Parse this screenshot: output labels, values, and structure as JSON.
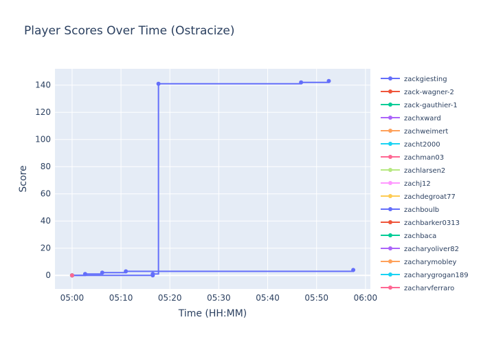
{
  "chart_data": {
    "type": "line",
    "title": "Player Scores Over Time (Ostracize)",
    "xlabel": "Time (HH:MM)",
    "ylabel": "Score",
    "x_tick_labels": [
      "05:00",
      "05:10",
      "05:20",
      "05:30",
      "05:40",
      "05:50",
      "06:00"
    ],
    "y_ticks": [
      0,
      20,
      40,
      60,
      80,
      100,
      120,
      140
    ],
    "xlim": [
      "04:56:30",
      "06:01:00"
    ],
    "ylim": [
      -10,
      152
    ],
    "grid": true,
    "legend_position": "right",
    "series": [
      {
        "name": "zackgiesting",
        "color": "#636efa",
        "points": [
          [
            "05:00:00",
            0
          ],
          [
            "05:16:30",
            0
          ],
          [
            "05:16:30",
            1
          ],
          [
            "05:17:40",
            141
          ],
          [
            "05:46:50",
            142
          ],
          [
            "05:52:30",
            143
          ]
        ]
      },
      {
        "name": "zack-wagner-2",
        "color": "#EF553B",
        "points": [
          [
            "05:00:00",
            0
          ]
        ]
      },
      {
        "name": "zack-gauthier-1",
        "color": "#00cc96",
        "points": [
          [
            "05:00:00",
            0
          ]
        ]
      },
      {
        "name": "zachxward",
        "color": "#ab63fa",
        "points": [
          [
            "05:00:00",
            0
          ]
        ]
      },
      {
        "name": "zachweimert",
        "color": "#FFA15A",
        "points": [
          [
            "05:00:00",
            0
          ]
        ]
      },
      {
        "name": "zacht2000",
        "color": "#19d3f3",
        "points": [
          [
            "05:00:00",
            0
          ]
        ]
      },
      {
        "name": "zachman03",
        "color": "#FF6692",
        "points": [
          [
            "05:00:00",
            0
          ]
        ]
      },
      {
        "name": "zachlarsen2",
        "color": "#B6E880",
        "points": [
          [
            "05:00:00",
            0
          ]
        ]
      },
      {
        "name": "zachj12",
        "color": "#FF97FF",
        "points": [
          [
            "05:00:00",
            0
          ]
        ]
      },
      {
        "name": "zachdegroat77",
        "color": "#FECB52",
        "points": [
          [
            "05:00:00",
            0
          ]
        ]
      },
      {
        "name": "zachboulb",
        "color": "#636efa",
        "points": [
          [
            "05:00:00",
            0
          ],
          [
            "05:02:40",
            1
          ],
          [
            "05:06:10",
            2
          ],
          [
            "05:11:00",
            3
          ],
          [
            "05:57:30",
            4
          ]
        ]
      },
      {
        "name": "zachbarker0313",
        "color": "#EF553B",
        "points": [
          [
            "05:00:00",
            0
          ]
        ]
      },
      {
        "name": "zachbaca",
        "color": "#00cc96",
        "points": [
          [
            "05:00:00",
            0
          ]
        ]
      },
      {
        "name": "zacharyoliver82",
        "color": "#ab63fa",
        "points": [
          [
            "05:00:00",
            0
          ]
        ]
      },
      {
        "name": "zacharymobley",
        "color": "#FFA15A",
        "points": [
          [
            "05:00:00",
            0
          ]
        ]
      },
      {
        "name": "zacharygrogan189",
        "color": "#19d3f3",
        "points": [
          [
            "05:00:00",
            0
          ]
        ]
      },
      {
        "name": "zacharyferraro",
        "color": "#FF6692",
        "points": [
          [
            "05:00:00",
            0
          ]
        ]
      }
    ]
  }
}
